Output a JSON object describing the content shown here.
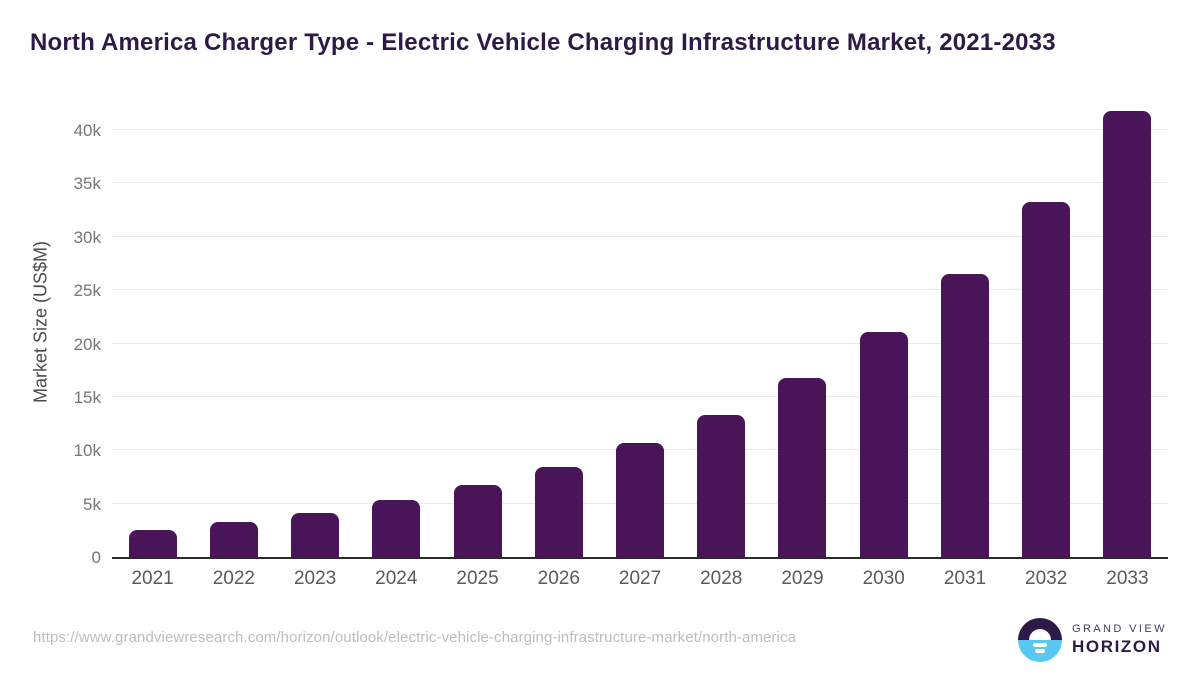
{
  "title": "North America Charger Type - Electric Vehicle Charging Infrastructure Market, 2021-2033",
  "chart_data": {
    "type": "bar",
    "title": "North America Charger Type - Electric Vehicle Charging Infrastructure Market, 2021-2033",
    "categories": [
      "2021",
      "2022",
      "2023",
      "2024",
      "2025",
      "2026",
      "2027",
      "2028",
      "2029",
      "2030",
      "2031",
      "2032",
      "2033"
    ],
    "values": [
      2500,
      3250,
      4150,
      5300,
      6700,
      8400,
      10700,
      13300,
      16800,
      21100,
      26500,
      33300,
      41800
    ],
    "xlabel": "",
    "ylabel": "Market Size (US$M)",
    "ylim": [
      0,
      43000
    ],
    "yticks": [
      0,
      5000,
      10000,
      15000,
      20000,
      25000,
      30000,
      35000,
      40000
    ],
    "ytick_labels": [
      "0",
      "5k",
      "10k",
      "15k",
      "20k",
      "25k",
      "30k",
      "35k",
      "40k"
    ],
    "grid": "horizontal",
    "legend": "none",
    "bar_color": "#4a1458"
  },
  "footer": {
    "source_url": "https://www.grandviewresearch.com/horizon/outlook/electric-vehicle-charging-infrastructure-market/north-america",
    "logo": {
      "line1": "GRAND VIEW",
      "line2": "HORIZON",
      "mark": "sunrise-horizon-icon"
    }
  },
  "colors": {
    "title_text": "#2e1a47",
    "bar": "#4a1458",
    "gridline": "#e8e8e8",
    "axis_line": "#2a2a2a",
    "ytick_text": "#767676",
    "xtick_text": "#5a5a5a",
    "url_text": "#bdbdbd",
    "logo_dark": "#2e1a47",
    "logo_blue": "#58c7f2"
  }
}
